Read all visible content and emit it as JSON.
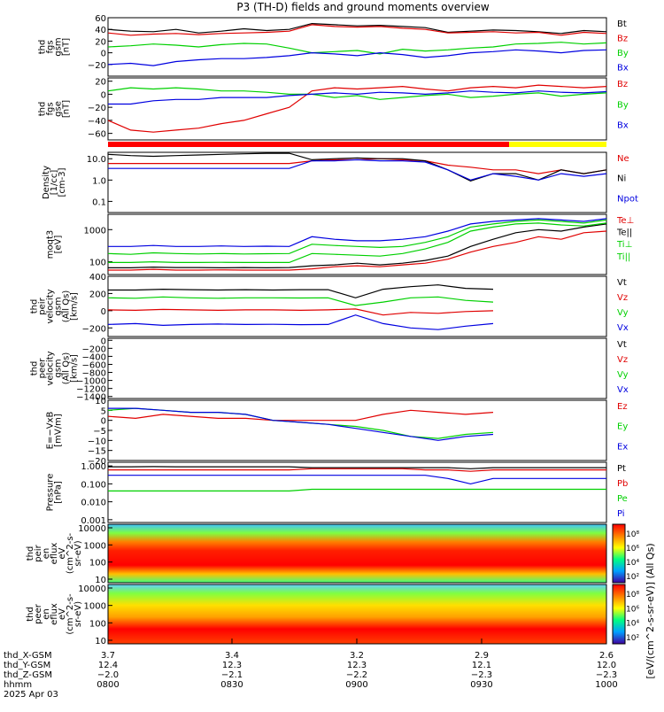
{
  "title": "P3 (TH-D) fields and ground moments overview",
  "colors": {
    "black": "#000000",
    "red": "#e00000",
    "green": "#00d000",
    "blue": "#0000e0",
    "yellow": "#ffff00"
  },
  "chart_data": [
    {
      "type": "line",
      "ylabel": [
        "thd",
        "fgs",
        "gsm",
        "[nT]"
      ],
      "ylim": [
        -40,
        60
      ],
      "ticks": [
        "60",
        "40",
        "20",
        "0",
        "−20"
      ],
      "tick_values": [
        60,
        40,
        20,
        0,
        -20
      ],
      "series": [
        {
          "name": "Bt",
          "color": "black",
          "values": [
            40,
            37,
            36,
            40,
            34,
            37,
            41,
            38,
            40,
            50,
            48,
            46,
            47,
            45,
            43,
            35,
            37,
            39,
            38,
            36,
            33,
            38,
            36
          ]
        },
        {
          "name": "Bz",
          "color": "red",
          "values": [
            34,
            30,
            32,
            33,
            31,
            33,
            34,
            35,
            37,
            48,
            45,
            44,
            45,
            42,
            40,
            34,
            35,
            36,
            34,
            35,
            30,
            35,
            33
          ]
        },
        {
          "name": "By",
          "color": "green",
          "values": [
            10,
            12,
            15,
            13,
            10,
            14,
            16,
            15,
            8,
            0,
            2,
            4,
            -2,
            6,
            3,
            5,
            8,
            10,
            15,
            16,
            18,
            15,
            17
          ]
        },
        {
          "name": "Bx",
          "color": "blue",
          "values": [
            -20,
            -18,
            -22,
            -15,
            -12,
            -10,
            -10,
            -8,
            -5,
            0,
            -2,
            -5,
            0,
            -3,
            -8,
            -5,
            0,
            2,
            5,
            3,
            0,
            4,
            5
          ]
        }
      ]
    },
    {
      "type": "line",
      "ylabel": [
        "thd",
        "fgs",
        "gse",
        "[nT]"
      ],
      "ylim": [
        -70,
        25
      ],
      "ticks": [
        "20",
        "0",
        "−20",
        "−40",
        "−60"
      ],
      "tick_values": [
        20,
        0,
        -20,
        -40,
        -60
      ],
      "series": [
        {
          "name": "Bz",
          "color": "red",
          "values": [
            -40,
            -55,
            -58,
            -55,
            -52,
            -45,
            -40,
            -30,
            -20,
            5,
            10,
            8,
            10,
            12,
            8,
            5,
            10,
            12,
            10,
            14,
            12,
            10,
            12
          ]
        },
        {
          "name": "By",
          "color": "green",
          "values": [
            5,
            10,
            8,
            10,
            8,
            5,
            5,
            3,
            0,
            0,
            -5,
            -2,
            -8,
            -5,
            -2,
            0,
            -5,
            -3,
            0,
            2,
            -3,
            0,
            2
          ]
        },
        {
          "name": "Bx",
          "color": "blue",
          "values": [
            -15,
            -15,
            -10,
            -8,
            -8,
            -5,
            -5,
            -5,
            -2,
            0,
            2,
            0,
            3,
            2,
            0,
            2,
            5,
            3,
            2,
            5,
            3,
            2,
            4
          ]
        }
      ]
    },
    {
      "type": "line",
      "scale": "log",
      "ylabel": [
        "Density",
        "[1/cc]",
        "[cm-3]"
      ],
      "ylim": [
        0.03,
        20
      ],
      "ticks": [
        "10.0",
        "1.0",
        "0.1"
      ],
      "tick_values": [
        10,
        1,
        0.1
      ],
      "series": [
        {
          "name": "Ne",
          "color": "red",
          "values": [
            6,
            6,
            6,
            6,
            6,
            6,
            6,
            6,
            6,
            8,
            9,
            9,
            10,
            9,
            8,
            5,
            4,
            3,
            3,
            2,
            3,
            2,
            3
          ]
        },
        {
          "name": "Ni",
          "color": "black",
          "values": [
            16,
            14,
            13,
            14,
            15,
            16,
            17,
            18,
            18,
            9,
            10,
            11,
            10,
            10,
            8,
            3,
            0.9,
            2,
            2,
            1,
            3,
            2,
            3
          ]
        },
        {
          "name": "Npot",
          "color": "blue",
          "values": [
            3.5,
            3.5,
            3.5,
            3.5,
            3.5,
            3.5,
            3.5,
            3.5,
            3.5,
            8,
            8,
            9,
            8,
            8,
            7,
            3,
            1,
            2,
            1.5,
            1,
            2,
            1.5,
            2
          ]
        }
      ]
    },
    {
      "type": "line",
      "scale": "log",
      "ylabel": [
        "moqt3",
        "[eV]"
      ],
      "ylim": [
        40,
        3000
      ],
      "ticks": [
        "1000",
        "100"
      ],
      "tick_values": [
        1000,
        100
      ],
      "series": [
        {
          "name": "Te⊥",
          "color": "red",
          "values": [
            55,
            55,
            58,
            55,
            55,
            56,
            55,
            55,
            55,
            60,
            70,
            75,
            70,
            80,
            90,
            120,
            200,
            300,
            400,
            600,
            500,
            800,
            900
          ]
        },
        {
          "name": "Te||",
          "color": "black",
          "values": [
            65,
            65,
            68,
            66,
            66,
            65,
            66,
            65,
            66,
            75,
            80,
            90,
            80,
            90,
            110,
            150,
            300,
            500,
            800,
            1000,
            900,
            1200,
            1500
          ]
        },
        {
          "name": "Ti⊥",
          "color": "green",
          "values": [
            180,
            170,
            190,
            180,
            175,
            180,
            175,
            178,
            180,
            350,
            320,
            300,
            280,
            300,
            400,
            600,
            1200,
            1500,
            1800,
            2000,
            1800,
            1600,
            2000
          ]
        },
        {
          "name": "Ti||",
          "color": "green",
          "values": [
            95,
            95,
            100,
            95,
            95,
            96,
            95,
            95,
            95,
            180,
            170,
            160,
            150,
            180,
            250,
            400,
            900,
            1200,
            1500,
            1600,
            1400,
            1300,
            1600
          ]
        },
        {
          "name": "",
          "color": "blue",
          "values": [
            300,
            300,
            320,
            300,
            300,
            310,
            300,
            305,
            300,
            600,
            500,
            450,
            450,
            500,
            600,
            900,
            1500,
            1800,
            2000,
            2200,
            2000,
            1800,
            2200
          ]
        }
      ]
    },
    {
      "type": "line",
      "ylabel": [
        "thd",
        "peir",
        "velocity",
        "gsm",
        "(All Qs)",
        "[km/s]"
      ],
      "ylim": [
        -300,
        400
      ],
      "ticks": [
        "400",
        "200",
        "0",
        "−200"
      ],
      "tick_values": [
        400,
        200,
        0,
        -200
      ],
      "series": [
        {
          "name": "Vt",
          "color": "black",
          "values": [
            240,
            240,
            250,
            245,
            240,
            245,
            240,
            245,
            245,
            150,
            250,
            280,
            300,
            260,
            250
          ]
        },
        {
          "name": "Vz",
          "color": "red",
          "values": [
            10,
            5,
            15,
            10,
            5,
            10,
            10,
            5,
            10,
            20,
            -50,
            -20,
            -30,
            -10,
            0
          ]
        },
        {
          "name": "Vy",
          "color": "green",
          "values": [
            150,
            145,
            160,
            150,
            145,
            150,
            150,
            148,
            150,
            60,
            100,
            150,
            160,
            120,
            100
          ]
        },
        {
          "name": "Vx",
          "color": "blue",
          "values": [
            -160,
            -150,
            -170,
            -160,
            -155,
            -160,
            -158,
            -162,
            -160,
            -50,
            -150,
            -200,
            -220,
            -180,
            -150
          ]
        }
      ]
    },
    {
      "type": "line",
      "ylabel": [
        "thd",
        "peer",
        "velocity",
        "gsm",
        "(All Qs)",
        "[km/s]"
      ],
      "ylim": [
        -1450,
        50
      ],
      "ticks": [
        "0",
        "−200",
        "−400",
        "−600",
        "−800",
        "−1000",
        "−1200",
        "−1400"
      ],
      "tick_values": [
        0,
        -200,
        -400,
        -600,
        -800,
        -1000,
        -1200,
        -1400
      ],
      "series": [
        {
          "name": "Vt",
          "color": "black",
          "values": []
        },
        {
          "name": "Vz",
          "color": "red",
          "values": []
        },
        {
          "name": "Vy",
          "color": "green",
          "values": []
        },
        {
          "name": "Vx",
          "color": "blue",
          "values": []
        }
      ]
    },
    {
      "type": "line",
      "ylabel": [
        "E=−VxB",
        "[mV/m]"
      ],
      "ylim": [
        -20,
        10
      ],
      "ticks": [
        "10",
        "5",
        "0",
        "−5",
        "−10",
        "−15",
        "−20"
      ],
      "tick_values": [
        10,
        5,
        0,
        -5,
        -10,
        -15,
        -20
      ],
      "series": [
        {
          "name": "Ez",
          "color": "red",
          "values": [
            2,
            1,
            3,
            2,
            1,
            1,
            0,
            0,
            0,
            0,
            3,
            5,
            4,
            3,
            4
          ]
        },
        {
          "name": "Ey",
          "color": "green",
          "values": [
            5,
            6,
            5,
            4,
            4,
            3,
            0,
            -1,
            -2,
            -3,
            -5,
            -8,
            -9,
            -7,
            -6
          ]
        },
        {
          "name": "Ex",
          "color": "blue",
          "values": [
            6,
            6,
            5,
            4,
            4,
            3,
            0,
            -1,
            -2,
            -4,
            -6,
            -8,
            -10,
            -8,
            -7
          ]
        }
      ]
    },
    {
      "type": "line",
      "scale": "log",
      "ylabel": [
        "Pressure",
        "[nPa]"
      ],
      "ylim": [
        0.0007,
        1.6
      ],
      "ticks": [
        "1.000",
        "0.100",
        "0.010",
        "0.001"
      ],
      "tick_values": [
        1,
        0.1,
        0.01,
        0.001
      ],
      "series": [
        {
          "name": "Pt",
          "color": "black",
          "values": [
            0.9,
            0.9,
            0.92,
            0.9,
            0.9,
            0.9,
            0.9,
            0.9,
            0.9,
            0.8,
            0.8,
            0.8,
            0.8,
            0.8,
            0.8,
            0.8,
            0.7,
            0.8,
            0.8,
            0.8,
            0.8,
            0.8,
            0.8
          ]
        },
        {
          "name": "Pb",
          "color": "red",
          "values": [
            0.6,
            0.6,
            0.6,
            0.6,
            0.6,
            0.6,
            0.6,
            0.6,
            0.6,
            0.7,
            0.7,
            0.7,
            0.7,
            0.7,
            0.6,
            0.6,
            0.5,
            0.6,
            0.6,
            0.6,
            0.6,
            0.6,
            0.6
          ]
        },
        {
          "name": "Pe",
          "color": "green",
          "values": [
            0.04,
            0.04,
            0.04,
            0.04,
            0.04,
            0.04,
            0.04,
            0.04,
            0.04,
            0.05,
            0.05,
            0.05,
            0.05,
            0.05,
            0.05,
            0.05,
            0.05,
            0.05,
            0.05,
            0.05,
            0.05,
            0.05,
            0.05
          ]
        },
        {
          "name": "Pi",
          "color": "blue",
          "values": [
            0.3,
            0.3,
            0.3,
            0.3,
            0.3,
            0.3,
            0.3,
            0.3,
            0.3,
            0.3,
            0.3,
            0.3,
            0.3,
            0.3,
            0.3,
            0.2,
            0.1,
            0.2,
            0.2,
            0.2,
            0.2,
            0.2,
            0.2
          ]
        }
      ]
    },
    {
      "type": "heatmap",
      "ylabel": [
        "thd",
        "peir",
        "en",
        "eflux",
        "eV",
        "(cm^2-s-",
        "sr-eV)"
      ],
      "ticks": [
        "10000",
        "1000",
        "100",
        "10"
      ],
      "colorbar_ticks": [
        "10⁸",
        "10⁶",
        "10⁴",
        "10²"
      ]
    },
    {
      "type": "heatmap",
      "ylabel": [
        "thd",
        "peer",
        "en",
        "eflux",
        "eV",
        "(cm^2-s-",
        "sr-eV)"
      ],
      "ticks": [
        "10000",
        "1000",
        "100",
        "10"
      ],
      "colorbar_ticks": [
        "10⁸",
        "10⁶",
        "10⁴",
        "10²"
      ]
    }
  ],
  "colorbar_label": "[eV/(cm^2-s-sr-eV)] (All Qs)",
  "footer": {
    "labels": [
      "thd_X-GSM",
      "thd_Y-GSM",
      "thd_Z-GSM",
      "hhmm",
      "2025 Apr 03"
    ],
    "x_ticks": [
      {
        "time": "0800",
        "x": "3.7",
        "y": "12.4",
        "z": "−2.0"
      },
      {
        "time": "0830",
        "x": "3.4",
        "y": "12.3",
        "z": "−2.1"
      },
      {
        "time": "0900",
        "x": "3.2",
        "y": "12.3",
        "z": "−2.2"
      },
      {
        "time": "0930",
        "x": "2.9",
        "y": "12.1",
        "z": "−2.3"
      },
      {
        "time": "1000",
        "x": "2.6",
        "y": "12.0",
        "z": "−2.3"
      }
    ]
  }
}
